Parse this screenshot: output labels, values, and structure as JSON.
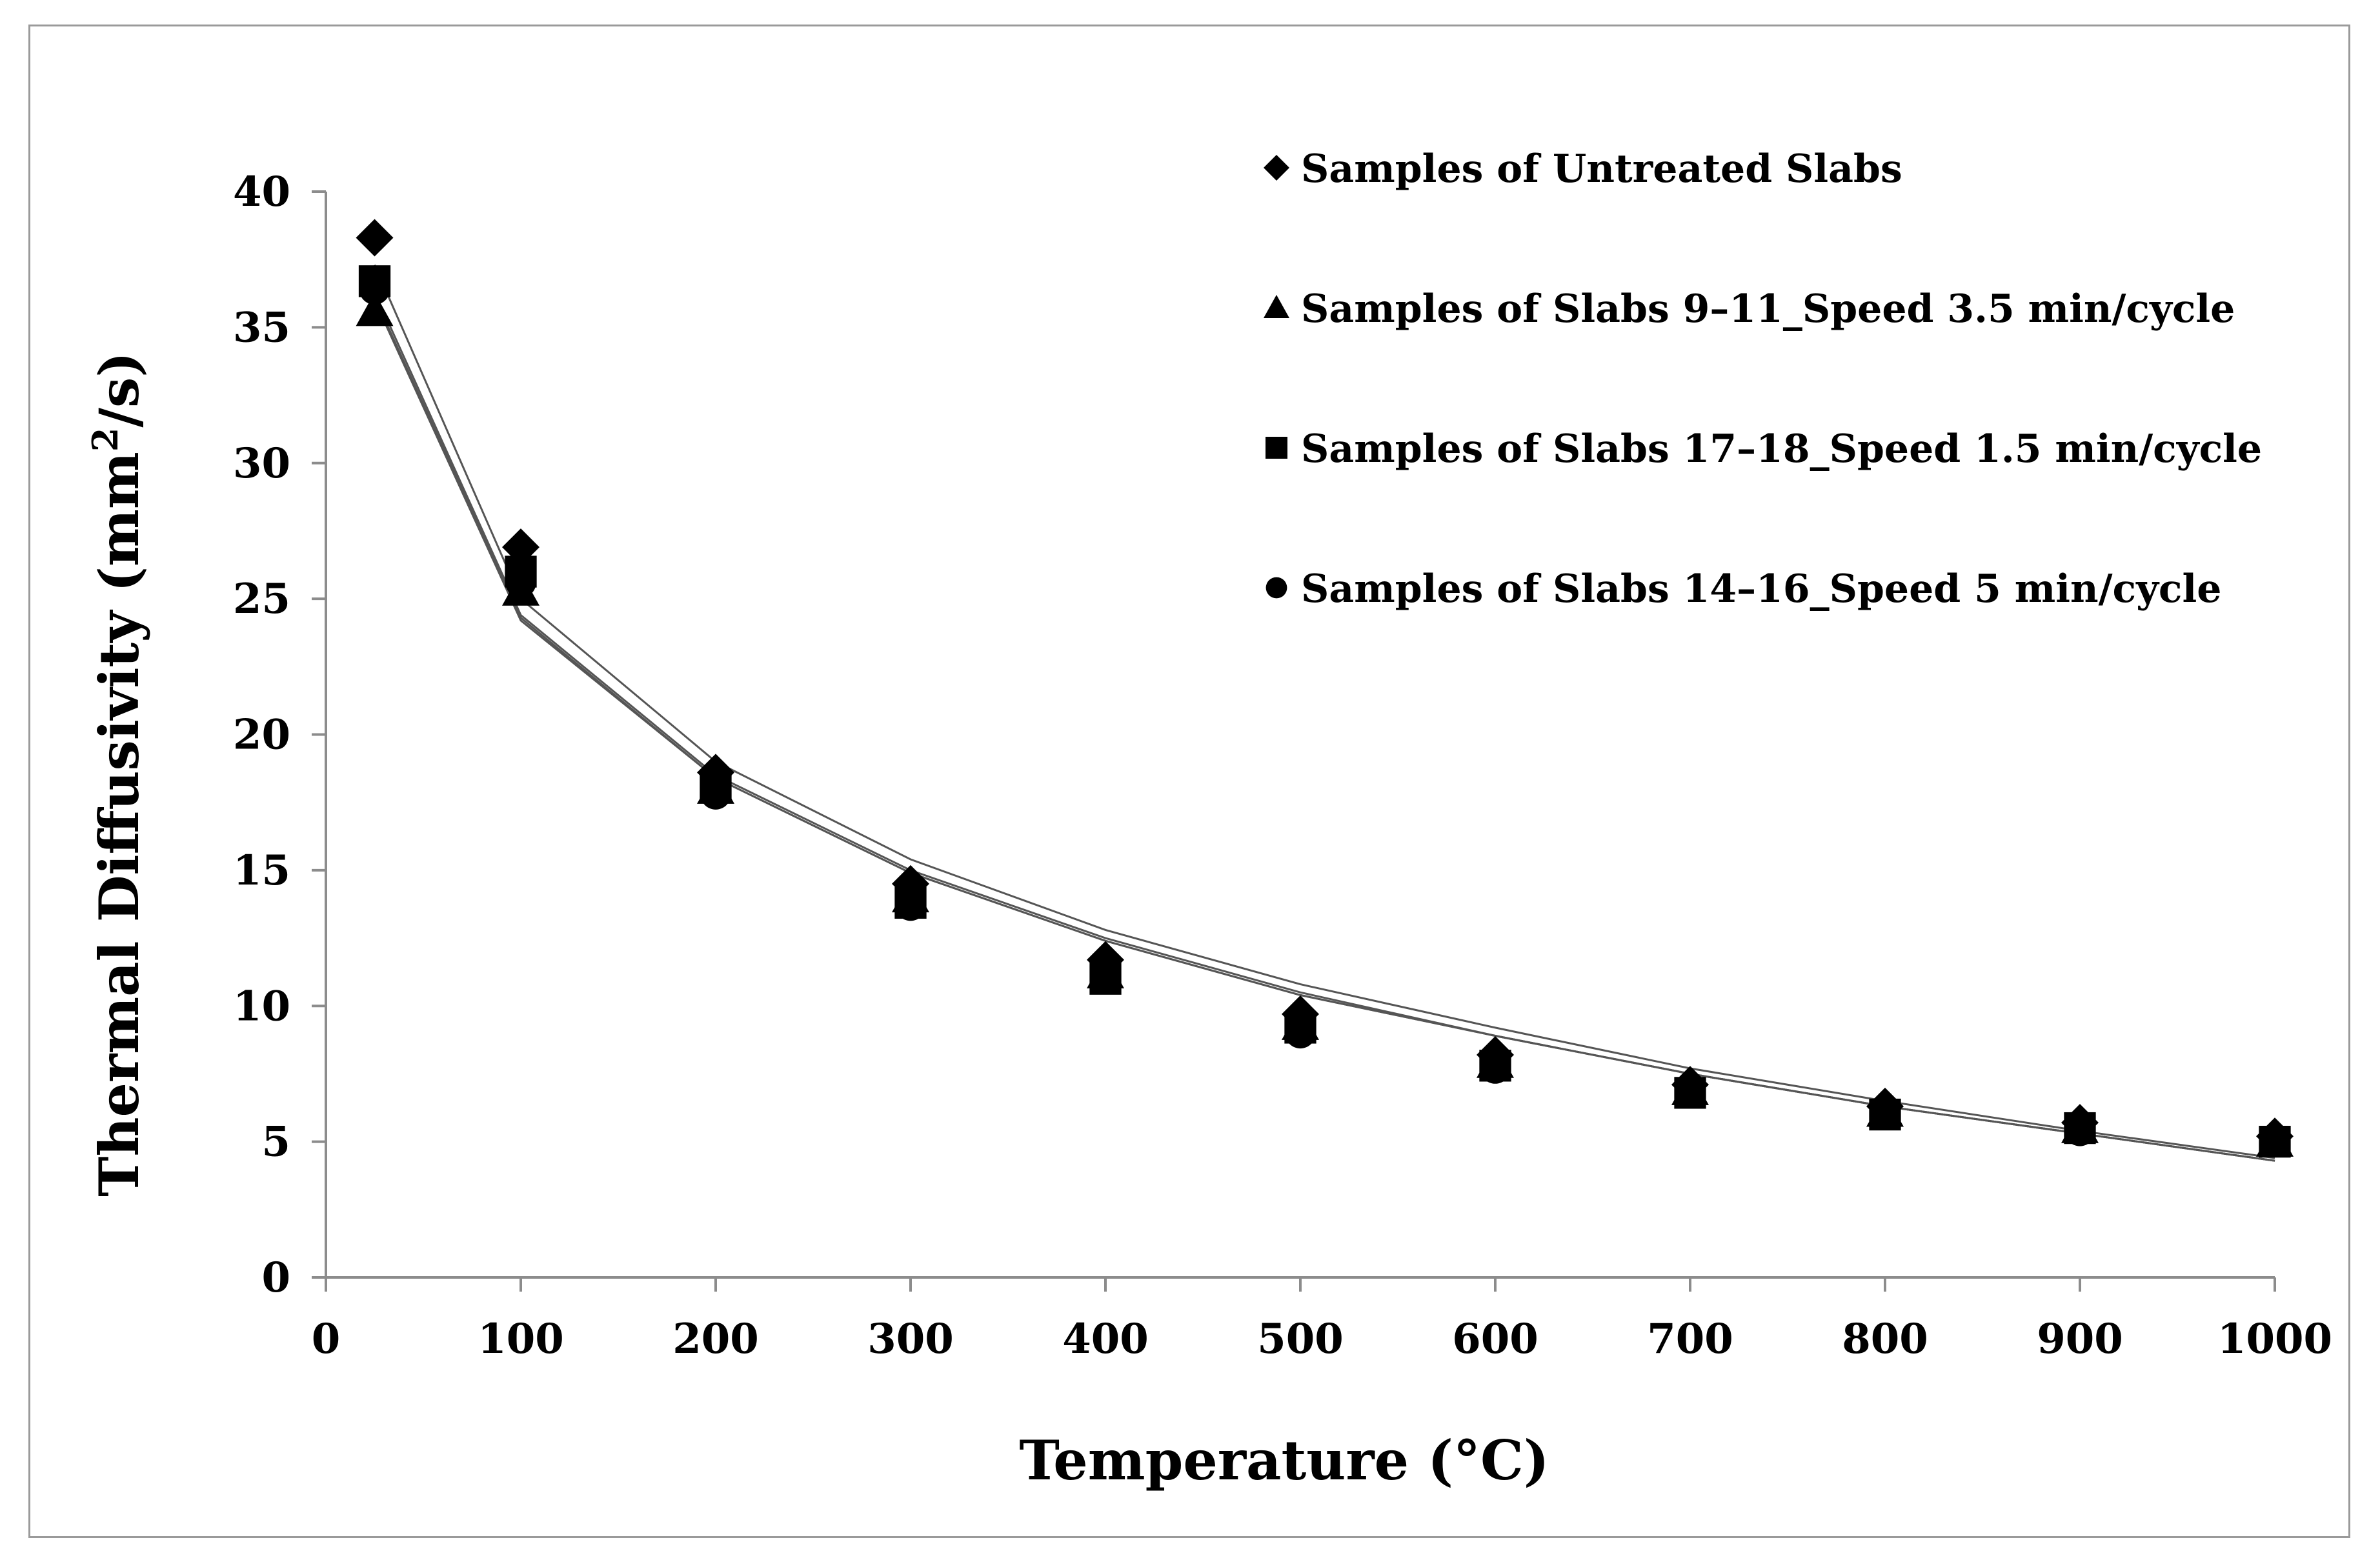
{
  "chart_data": {
    "type": "scatter",
    "xlabel": "Temperature (°C)",
    "ylabel_main": "Thermal Diffusivity (mm",
    "ylabel_sup": "2",
    "ylabel_tail": "/s)",
    "xlim": [
      0,
      1000
    ],
    "ylim": [
      0,
      40
    ],
    "xticks": [
      0,
      100,
      200,
      300,
      400,
      500,
      600,
      700,
      800,
      900,
      1000
    ],
    "yticks": [
      0,
      5,
      10,
      15,
      20,
      25,
      30,
      35,
      40
    ],
    "grid": false,
    "legend_position": "top-right",
    "x": [
      25,
      100,
      200,
      300,
      400,
      500,
      600,
      700,
      800,
      900,
      1000
    ],
    "series": [
      {
        "name": "Samples of Untreated Slabs",
        "marker": "diamond",
        "values": [
          38.3,
          26.9,
          18.6,
          14.5,
          11.7,
          9.7,
          8.2,
          7.1,
          6.3,
          5.7,
          5.2
        ],
        "trend": [
          37.3,
          25.0,
          19.0,
          15.4,
          12.8,
          10.8,
          9.2,
          7.7,
          6.5,
          5.4,
          4.4
        ]
      },
      {
        "name": "Samples of Slabs 9–11_Speed 3.5 min/cycle",
        "marker": "triangle",
        "values": [
          35.6,
          25.3,
          18.0,
          14.0,
          11.2,
          9.3,
          7.9,
          6.9,
          6.1,
          5.5,
          5.0
        ],
        "trend": [
          36.0,
          24.2,
          18.4,
          14.9,
          12.4,
          10.4,
          8.9,
          7.5,
          6.3,
          5.3,
          4.3
        ]
      },
      {
        "name": "Samples of Slabs 17–18_Speed 1.5 min/cycle",
        "marker": "square",
        "values": [
          36.7,
          26.0,
          18.1,
          13.8,
          11.0,
          9.2,
          7.8,
          6.8,
          6.0,
          5.5,
          5.0
        ],
        "trend": [
          36.3,
          24.4,
          18.5,
          15.0,
          12.5,
          10.5,
          8.9,
          7.5,
          6.3,
          5.3,
          4.3
        ]
      },
      {
        "name": "Samples of Slabs 14–16_Speed 5 min/cycle",
        "marker": "circle",
        "values": [
          36.4,
          25.6,
          17.8,
          13.7,
          11.0,
          9.0,
          7.7,
          6.8,
          6.0,
          5.4,
          5.0
        ],
        "trend": [
          36.1,
          24.3,
          18.4,
          14.9,
          12.4,
          10.4,
          8.9,
          7.5,
          6.3,
          5.3,
          4.3
        ]
      }
    ]
  }
}
